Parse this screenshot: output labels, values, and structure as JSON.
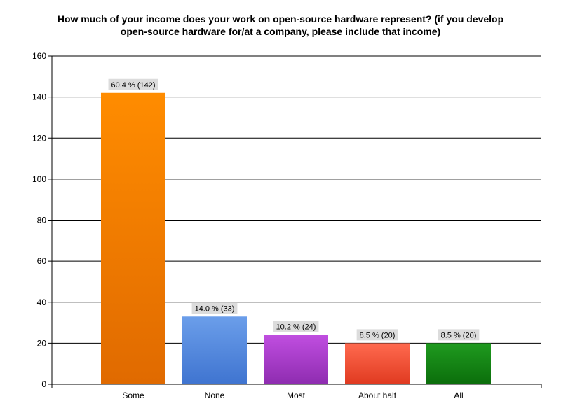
{
  "chart_data": {
    "type": "bar",
    "title_lines": [
      "How much of your income does your work on open-source hardware represent? (if you develop",
      "open-source hardware for/at a company, please include that income)"
    ],
    "categories": [
      "Some",
      "None",
      "Most",
      "About half",
      "All"
    ],
    "values": [
      142,
      33,
      24,
      20,
      20
    ],
    "data_labels": [
      "60.4 % (142)",
      "14.0 % (33)",
      "10.2 % (24)",
      "8.5 % (20)",
      "8.5 % (20)"
    ],
    "bar_colors": [
      [
        "#ff8c00",
        "#e06a00"
      ],
      [
        "#6b9eea",
        "#3f74d0"
      ],
      [
        "#c04ee0",
        "#8e2cb0"
      ],
      [
        "#ff6a4f",
        "#e03a20"
      ],
      [
        "#1f9a1f",
        "#0b6e0b"
      ]
    ],
    "xlabel": "",
    "ylabel": "",
    "ylim": [
      0,
      160
    ],
    "yticks": [
      0,
      20,
      40,
      60,
      80,
      100,
      120,
      140,
      160
    ],
    "grid": true,
    "legend": "none"
  }
}
